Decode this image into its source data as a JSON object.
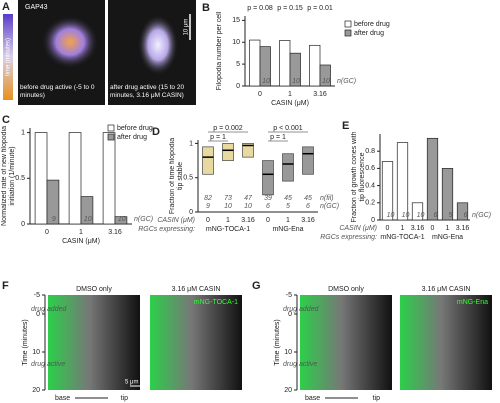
{
  "panel_a": {
    "label": "A",
    "marker": "GAP43",
    "time_label": "time (minutes)",
    "time_ends": [
      -5,
      5
    ],
    "scale": "10 μm",
    "captions": [
      "before drug active (-5 to 0 minutes)",
      "after drug active (15 to 20 minutes, 3.16 μM CASIN)"
    ]
  },
  "chart_data": [
    {
      "type": "bar",
      "panel": "B",
      "y_label": "Filopodia number per cell",
      "x_label": "CASIN (μM)",
      "categories": [
        "0",
        "1",
        "3.16"
      ],
      "ylim": [
        0,
        16
      ],
      "yticks": [
        0,
        5,
        10,
        15
      ],
      "series": [
        {
          "name": "before drug",
          "color": "#ffffff",
          "values": [
            10.5,
            10.4,
            9.3
          ]
        },
        {
          "name": "after drug",
          "color": "#999999",
          "values": [
            9,
            7.5,
            4.8
          ]
        }
      ],
      "annotations": [
        "p = 0.08",
        "p = 0.15",
        "p = 0.01"
      ],
      "n_values": [
        10,
        10,
        10
      ],
      "n_unit": "n(GC)"
    },
    {
      "type": "bar",
      "panel": "C",
      "y_label": "Normalized rate of new filopodia initiation (1/minute)",
      "x_label": "CASIN (μM)",
      "categories": [
        "0",
        "1",
        "3.16"
      ],
      "ylim": [
        0,
        1.05
      ],
      "yticks": [
        0,
        0.5,
        1
      ],
      "series": [
        {
          "name": "before drug",
          "color": "#ffffff",
          "values": [
            1,
            1,
            1
          ]
        },
        {
          "name": "after drug",
          "color": "#999999",
          "values": [
            0.48,
            0.3,
            0.08
          ]
        }
      ],
      "n_values": [
        9,
        10,
        10
      ],
      "n_unit": "n(GC)"
    },
    {
      "type": "box",
      "panel": "D",
      "y_label": "Fraction of time filopodia tip stable",
      "row_label": "CASIN (μM)",
      "group_title": "RGCs expressing:",
      "categories": [
        "0",
        "1",
        "3.16",
        "0",
        "1",
        "3.16"
      ],
      "group_labels": [
        "mNG-TOCA-1",
        "mNG-Ena"
      ],
      "ylim": [
        0,
        1.05
      ],
      "yticks": [
        0,
        0.5,
        1
      ],
      "colors": [
        "#e8d9a0",
        "#e8d9a0",
        "#e8d9a0",
        "#999999",
        "#999999",
        "#999999"
      ],
      "q1": [
        0.55,
        0.75,
        0.8,
        0.25,
        0.45,
        0.55
      ],
      "median": [
        0.8,
        0.9,
        0.97,
        0.55,
        0.7,
        0.85
      ],
      "q3": [
        0.95,
        1,
        1,
        0.75,
        0.85,
        0.95
      ],
      "annotations": [
        "p = 0.002",
        "p = 1",
        "p < 0.001",
        "p = 1"
      ],
      "n_fil": [
        82,
        73,
        47,
        39,
        45,
        45
      ],
      "n_fil_unit": "n(fil)",
      "n_gc": [
        9,
        10,
        10,
        6,
        5,
        6
      ],
      "n_gc_unit": "n(GC)"
    },
    {
      "type": "bar",
      "panel": "E",
      "y_label": "Fraction of growth cones with tip fluorescence",
      "row_label": "CASIN (μM)",
      "group_title": "RGCs expressing:",
      "categories": [
        "0",
        "1",
        "3.16",
        "0",
        "1",
        "3.16"
      ],
      "group_labels": [
        "mNG-TOCA-1",
        "mNG-Ena"
      ],
      "ylim": [
        0,
        1
      ],
      "yticks": [
        0,
        0.2,
        0.4,
        0.6,
        0.8
      ],
      "values": [
        0.68,
        0.9,
        0.2,
        0.95,
        0.6,
        0.2
      ],
      "colors": [
        "#ffffff",
        "#ffffff",
        "#ffffff",
        "#999999",
        "#999999",
        "#999999"
      ],
      "n_values": [
        10,
        10,
        10,
        6,
        5,
        6
      ],
      "n_unit": "n(GC)"
    }
  ],
  "panel_f": {
    "label": "F",
    "titles": [
      "DMSO only",
      "3.16 μM CASIN"
    ],
    "marker": "mNG-TOCA-1",
    "y_label": "Time (minutes)",
    "ticks": [
      -5,
      0,
      10,
      20
    ],
    "notes": [
      "drug added",
      "drug active"
    ],
    "scale": "5 μm",
    "x_ends": [
      "base",
      "tip"
    ]
  },
  "panel_g": {
    "label": "G",
    "titles": [
      "DMSO only",
      "3.16 μM CASIN"
    ],
    "marker": "mNG-Ena",
    "y_label": "Time (minutes)",
    "ticks": [
      -5,
      0,
      10,
      20
    ],
    "notes": [
      "drug added",
      "drug active"
    ],
    "x_ends": [
      "base",
      "tip"
    ]
  }
}
